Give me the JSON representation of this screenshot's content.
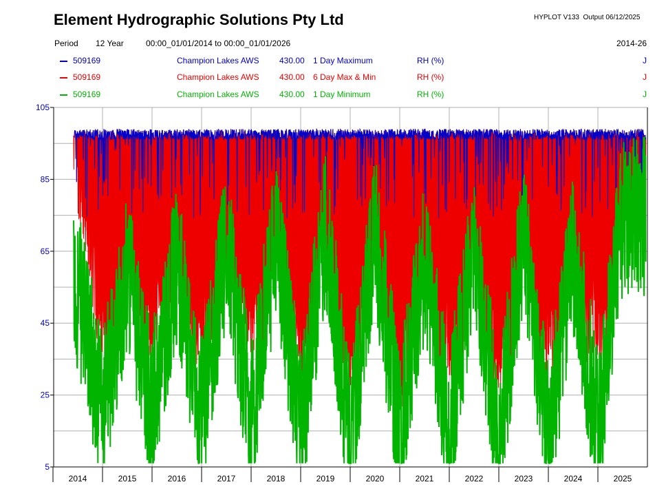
{
  "header": {
    "company": "Element Hydrographic Solutions Pty Ltd",
    "software": "HYPLOT V133",
    "output": "Output 06/12/2025",
    "period_label": "Period",
    "period_value": "12 Year",
    "period_range": "00:00_01/01/2014 to 00:00_01/01/2026",
    "period_code": "2014-26"
  },
  "legend": [
    {
      "site": "509169",
      "name": "Champion Lakes AWS",
      "var": "430.00",
      "desc": "1 Day Maximum",
      "unit": "RH (%)",
      "flag": "J",
      "color": "#0000cc"
    },
    {
      "site": "509169",
      "name": "Champion Lakes AWS",
      "var": "430.00",
      "desc": "6 Day Max & Min",
      "unit": "RH (%)",
      "flag": "J",
      "color": "#ee0000"
    },
    {
      "site": "509169",
      "name": "Champion Lakes AWS",
      "var": "430.00",
      "desc": "1 Day Minimum",
      "unit": "RH (%)",
      "flag": "J",
      "color": "#00b400"
    }
  ],
  "chart_data": {
    "type": "line",
    "ylim": [
      5,
      105
    ],
    "yticks": [
      "105",
      "85",
      "65",
      "45",
      "25",
      "5"
    ],
    "categories": [
      "2014",
      "2015",
      "2016",
      "2017",
      "2018",
      "2019",
      "2020",
      "2021",
      "2022",
      "2023",
      "2024",
      "2025"
    ],
    "grid": true,
    "series": [
      {
        "name": "1 Day Maximum",
        "color": "#0000cc",
        "x": [
          "2014-06",
          "2015-06",
          "2016-06",
          "2017-06",
          "2018-06",
          "2019-06",
          "2020-06",
          "2021-06",
          "2022-06",
          "2023-06",
          "2024-06",
          "2025-06"
        ],
        "values": [
          99,
          99,
          99,
          99,
          99,
          99,
          99,
          99,
          99,
          99,
          99,
          99
        ]
      },
      {
        "name": "6 Day Max & Min",
        "color": "#ee0000",
        "x": [
          "2014-06",
          "2015-01",
          "2016-01",
          "2017-01",
          "2018-01",
          "2019-01",
          "2020-01",
          "2021-01",
          "2022-01",
          "2023-01",
          "2024-01",
          "2025-01"
        ],
        "values": [
          98,
          45,
          50,
          48,
          50,
          45,
          40,
          35,
          42,
          40,
          45,
          50
        ]
      },
      {
        "name": "1 Day Minimum",
        "color": "#00b400",
        "x": [
          "2014-03",
          "2014-07",
          "2015-01",
          "2015-07",
          "2016-01",
          "2016-07",
          "2017-01",
          "2017-07",
          "2018-01",
          "2018-07",
          "2019-01",
          "2019-07",
          "2020-01",
          "2020-07",
          "2021-01",
          "2021-07",
          "2022-01",
          "2022-07",
          "2023-01",
          "2023-07",
          "2024-01",
          "2024-07",
          "2025-01",
          "2025-07"
        ],
        "values": [
          40,
          55,
          20,
          60,
          22,
          62,
          18,
          68,
          18,
          70,
          15,
          72,
          12,
          70,
          15,
          62,
          15,
          68,
          12,
          70,
          12,
          64,
          15,
          75
        ]
      }
    ]
  }
}
